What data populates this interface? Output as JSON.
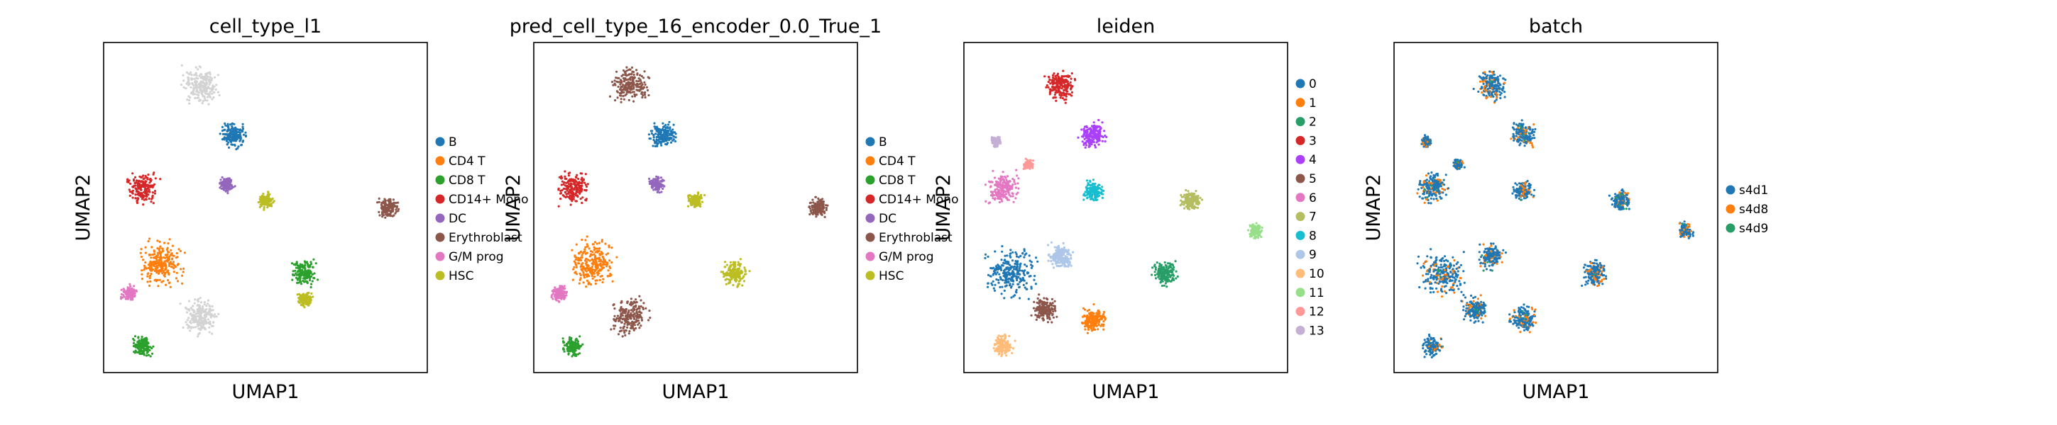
{
  "figure": {
    "panels": [
      {
        "title": "cell_type_l1",
        "xlabel": "UMAP1",
        "ylabel": "UMAP2",
        "legend": [
          {
            "label": "B",
            "color": "#1f77b4"
          },
          {
            "label": "CD4 T",
            "color": "#ff7f0e"
          },
          {
            "label": "CD8 T",
            "color": "#2ca02c"
          },
          {
            "label": "CD14+ Mono",
            "color": "#d62728"
          },
          {
            "label": "DC",
            "color": "#9467bd"
          },
          {
            "label": "Erythroblast",
            "color": "#8c564b"
          },
          {
            "label": "G/M prog",
            "color": "#e377c2"
          },
          {
            "label": "HSC",
            "color": "#bcbd22"
          }
        ]
      },
      {
        "title": "pred_cell_type_16_encoder_0.0_True_1",
        "xlabel": "UMAP1",
        "ylabel": "UMAP2",
        "legend": [
          {
            "label": "B",
            "color": "#1f77b4"
          },
          {
            "label": "CD4 T",
            "color": "#ff7f0e"
          },
          {
            "label": "CD8 T",
            "color": "#2ca02c"
          },
          {
            "label": "CD14+ Mono",
            "color": "#d62728"
          },
          {
            "label": "DC",
            "color": "#9467bd"
          },
          {
            "label": "Erythroblast",
            "color": "#8c564b"
          },
          {
            "label": "G/M prog",
            "color": "#e377c2"
          },
          {
            "label": "HSC",
            "color": "#bcbd22"
          }
        ]
      },
      {
        "title": "leiden",
        "xlabel": "UMAP1",
        "ylabel": "UMAP2",
        "legend": [
          {
            "label": "0",
            "color": "#1f77b4"
          },
          {
            "label": "1",
            "color": "#ff7f0e"
          },
          {
            "label": "2",
            "color": "#279e68"
          },
          {
            "label": "3",
            "color": "#d62728"
          },
          {
            "label": "4",
            "color": "#aa40fc"
          },
          {
            "label": "5",
            "color": "#8c564b"
          },
          {
            "label": "6",
            "color": "#e377c2"
          },
          {
            "label": "7",
            "color": "#b5bd61"
          },
          {
            "label": "8",
            "color": "#17becf"
          },
          {
            "label": "9",
            "color": "#aec7e8"
          },
          {
            "label": "10",
            "color": "#ffbb78"
          },
          {
            "label": "11",
            "color": "#98df8a"
          },
          {
            "label": "12",
            "color": "#ff9896"
          },
          {
            "label": "13",
            "color": "#c5b0d5"
          }
        ]
      },
      {
        "title": "batch",
        "xlabel": "UMAP1",
        "ylabel": "UMAP2",
        "legend": [
          {
            "label": "s4d1",
            "color": "#1f77b4"
          },
          {
            "label": "s4d8",
            "color": "#ff7f0e"
          },
          {
            "label": "s4d9",
            "color": "#279e68"
          }
        ]
      }
    ]
  },
  "chart_data": [
    {
      "type": "scatter",
      "title": "cell_type_l1",
      "xlabel": "UMAP1",
      "ylabel": "UMAP2",
      "grid": false,
      "legend_position": "right",
      "categories": [
        "B",
        "CD4 T",
        "CD8 T",
        "CD14+ Mono",
        "DC",
        "Erythroblast",
        "G/M prog",
        "HSC"
      ],
      "unlabeled_color": "#d3d3d3",
      "clusters": [
        {
          "category": null,
          "x": 0.3,
          "y": 0.87,
          "size": 0.07
        },
        {
          "category": "B",
          "x": 0.4,
          "y": 0.72,
          "size": 0.05
        },
        {
          "category": "CD14+ Mono",
          "x": 0.12,
          "y": 0.56,
          "size": 0.06
        },
        {
          "category": "DC",
          "x": 0.38,
          "y": 0.57,
          "size": 0.03
        },
        {
          "category": "HSC",
          "x": 0.5,
          "y": 0.52,
          "size": 0.03
        },
        {
          "category": "Erythroblast",
          "x": 0.88,
          "y": 0.5,
          "size": 0.04
        },
        {
          "category": "CD4 T",
          "x": 0.18,
          "y": 0.33,
          "size": 0.09
        },
        {
          "category": null,
          "x": 0.3,
          "y": 0.17,
          "size": 0.07
        },
        {
          "category": "HSC",
          "x": 0.62,
          "y": 0.22,
          "size": 0.03
        },
        {
          "category": "G/M prog",
          "x": 0.08,
          "y": 0.24,
          "size": 0.03
        },
        {
          "category": "CD8 T",
          "x": 0.62,
          "y": 0.3,
          "size": 0.05
        },
        {
          "category": "CD8 T",
          "x": 0.12,
          "y": 0.08,
          "size": 0.04
        }
      ]
    },
    {
      "type": "scatter",
      "title": "pred_cell_type_16_encoder_0.0_True_1",
      "xlabel": "UMAP1",
      "ylabel": "UMAP2",
      "grid": false,
      "legend_position": "right",
      "categories": [
        "B",
        "CD4 T",
        "CD8 T",
        "CD14+ Mono",
        "DC",
        "Erythroblast",
        "G/M prog",
        "HSC"
      ],
      "clusters": [
        {
          "category": "Erythroblast",
          "x": 0.3,
          "y": 0.87,
          "size": 0.07
        },
        {
          "category": "B",
          "x": 0.4,
          "y": 0.72,
          "size": 0.05
        },
        {
          "category": "CD14+ Mono",
          "x": 0.12,
          "y": 0.56,
          "size": 0.06
        },
        {
          "category": "DC",
          "x": 0.38,
          "y": 0.57,
          "size": 0.03
        },
        {
          "category": "HSC",
          "x": 0.5,
          "y": 0.52,
          "size": 0.03
        },
        {
          "category": "Erythroblast",
          "x": 0.88,
          "y": 0.5,
          "size": 0.04
        },
        {
          "category": "CD4 T",
          "x": 0.18,
          "y": 0.33,
          "size": 0.09
        },
        {
          "category": "Erythroblast",
          "x": 0.3,
          "y": 0.17,
          "size": 0.07
        },
        {
          "category": "HSC",
          "x": 0.62,
          "y": 0.3,
          "size": 0.05
        },
        {
          "category": "G/M prog",
          "x": 0.08,
          "y": 0.24,
          "size": 0.03
        },
        {
          "category": "CD8 T",
          "x": 0.12,
          "y": 0.08,
          "size": 0.04
        }
      ]
    },
    {
      "type": "scatter",
      "title": "leiden",
      "xlabel": "UMAP1",
      "ylabel": "UMAP2",
      "grid": false,
      "legend_position": "right",
      "categories": [
        "0",
        "1",
        "2",
        "3",
        "4",
        "5",
        "6",
        "7",
        "8",
        "9",
        "10",
        "11",
        "12",
        "13"
      ],
      "clusters": [
        {
          "category": "3",
          "x": 0.3,
          "y": 0.87,
          "size": 0.06
        },
        {
          "category": "4",
          "x": 0.4,
          "y": 0.72,
          "size": 0.05
        },
        {
          "category": "13",
          "x": 0.1,
          "y": 0.7,
          "size": 0.02
        },
        {
          "category": "12",
          "x": 0.2,
          "y": 0.63,
          "size": 0.02
        },
        {
          "category": "6",
          "x": 0.12,
          "y": 0.56,
          "size": 0.06
        },
        {
          "category": "8",
          "x": 0.4,
          "y": 0.55,
          "size": 0.04
        },
        {
          "category": "7",
          "x": 0.7,
          "y": 0.52,
          "size": 0.04
        },
        {
          "category": "11",
          "x": 0.9,
          "y": 0.43,
          "size": 0.03
        },
        {
          "category": "0",
          "x": 0.15,
          "y": 0.3,
          "size": 0.09
        },
        {
          "category": "9",
          "x": 0.3,
          "y": 0.35,
          "size": 0.05
        },
        {
          "category": "5",
          "x": 0.25,
          "y": 0.19,
          "size": 0.05
        },
        {
          "category": "1",
          "x": 0.4,
          "y": 0.16,
          "size": 0.05
        },
        {
          "category": "2",
          "x": 0.62,
          "y": 0.3,
          "size": 0.05
        },
        {
          "category": "10",
          "x": 0.12,
          "y": 0.08,
          "size": 0.04
        }
      ]
    },
    {
      "type": "scatter",
      "title": "batch",
      "xlabel": "UMAP1",
      "ylabel": "UMAP2",
      "grid": false,
      "legend_position": "right",
      "categories": [
        "s4d1",
        "s4d8",
        "s4d9"
      ]
    }
  ]
}
